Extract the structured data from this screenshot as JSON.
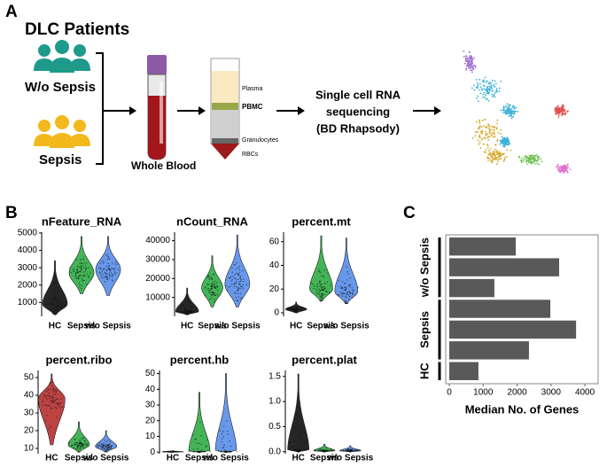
{
  "panel_labels": [
    "A",
    "B",
    "C"
  ],
  "workflow": {
    "title": "DLC Patients",
    "groups": [
      "W/o Sepsis",
      "Sepsis"
    ],
    "blood": "Whole Blood",
    "tube_layers": [
      "Plasma",
      "PBMC",
      "Granulocytes",
      "RBCs"
    ],
    "sequencing": [
      "Single cell RNA",
      "sequencing",
      "(BD Rhapsody)"
    ]
  },
  "chart_data": [
    {
      "type": "violin",
      "title": "nFeature_RNA",
      "categories": [
        "HC",
        "Sepsis",
        "w/o Sepsis"
      ],
      "colors": [
        "#000000",
        "#22a83a",
        "#4d86e8"
      ],
      "ylim": [
        200,
        5050
      ],
      "yticks": [
        1000,
        2000,
        3000,
        4000,
        5000
      ]
    },
    {
      "type": "violin",
      "title": "nCount_RNA",
      "categories": [
        "HC",
        "Sepsis",
        "w/o Sepsis"
      ],
      "colors": [
        "#000000",
        "#22a83a",
        "#4d86e8"
      ],
      "ylim": [
        0,
        44500
      ],
      "yticks": [
        10000,
        20000,
        30000,
        40000
      ]
    },
    {
      "type": "violin",
      "title": "percent.mt",
      "categories": [
        "HC",
        "Sepsis",
        "w/o Sepsis"
      ],
      "colors": [
        "#000000",
        "#22a83a",
        "#4d86e8"
      ],
      "ylim": [
        -3,
        68
      ],
      "yticks": [
        0,
        20,
        40,
        60
      ]
    },
    {
      "type": "violin",
      "title": "percent.ribo",
      "categories": [
        "HC",
        "Sepsis",
        "w/o Sepsis"
      ],
      "colors": [
        "#b22222",
        "#22a83a",
        "#4d86e8"
      ],
      "ylim": [
        7,
        54
      ],
      "yticks": [
        10,
        20,
        30,
        40,
        50
      ]
    },
    {
      "type": "violin",
      "title": "percent.hb",
      "categories": [
        "HC",
        "Sepsis",
        "w/o Sepsis"
      ],
      "colors": [
        "#000000",
        "#22a83a",
        "#4d86e8"
      ],
      "ylim": [
        -1,
        52
      ],
      "yticks": [
        0,
        10,
        20,
        30,
        40,
        50
      ]
    },
    {
      "type": "violin",
      "title": "percent.plat",
      "categories": [
        "HC",
        "Sepsis",
        "w/o Sepsis"
      ],
      "colors": [
        "#000000",
        "#22a83a",
        "#4d86e8"
      ],
      "ylim": [
        -0.04,
        1.62
      ],
      "yticks": [
        {
          "value": 0,
          "label": "0.0"
        },
        {
          "value": 0.5,
          "label": "0.5"
        },
        {
          "value": 1,
          "label": "1.0"
        },
        {
          "value": 1.5,
          "label": "1.5"
        }
      ]
    },
    {
      "type": "bar",
      "orientation": "horizontal",
      "categories": [
        null,
        null,
        null,
        null,
        null,
        null,
        null
      ],
      "values": [
        1960,
        3240,
        1330,
        2980,
        3740,
        2350,
        860
      ],
      "color": "#595959",
      "group_labels": [
        "w/o Sepsis",
        "Sepsis",
        "HC"
      ],
      "xlabel": "Median No. of Genes",
      "xlim": [
        -105,
        4390
      ],
      "xticks": [
        0,
        1000,
        2000,
        3000,
        4000
      ]
    }
  ]
}
